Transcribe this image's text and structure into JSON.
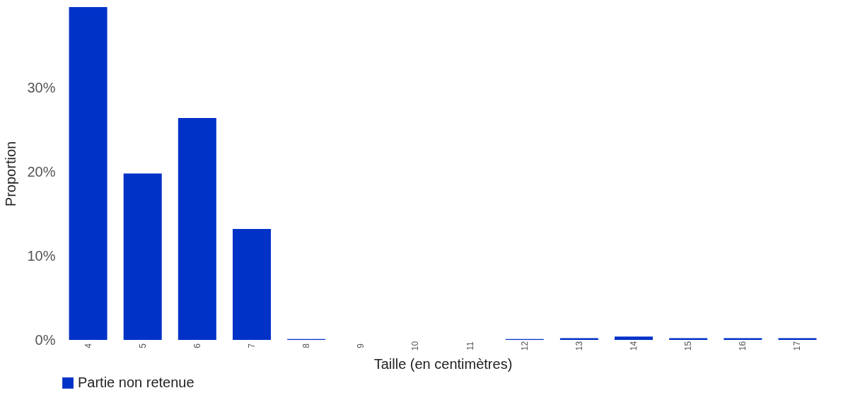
{
  "chart_data": {
    "type": "bar",
    "xlabel": "Taille (en centimètres)",
    "ylabel": "Proportion",
    "categories": [
      "4",
      "5",
      "6",
      "7",
      "8",
      "9",
      "10",
      "11",
      "12",
      "13",
      "14",
      "15",
      "16",
      "17"
    ],
    "series": [
      {
        "name": "Partie non retenue",
        "color": "#0032c8",
        "values": [
          39.6,
          19.8,
          26.4,
          13.2,
          0.1,
          0,
          0,
          0,
          0.1,
          0.2,
          0.4,
          0.2,
          0.2,
          0.2
        ]
      }
    ],
    "ylim": [
      0,
      39.6
    ],
    "yticks": [
      {
        "value": 0,
        "label": "0%"
      },
      {
        "value": 10,
        "label": "10%"
      },
      {
        "value": 20,
        "label": "20%"
      },
      {
        "value": 30,
        "label": "30%"
      }
    ],
    "grid": false,
    "legend": "bottom"
  }
}
